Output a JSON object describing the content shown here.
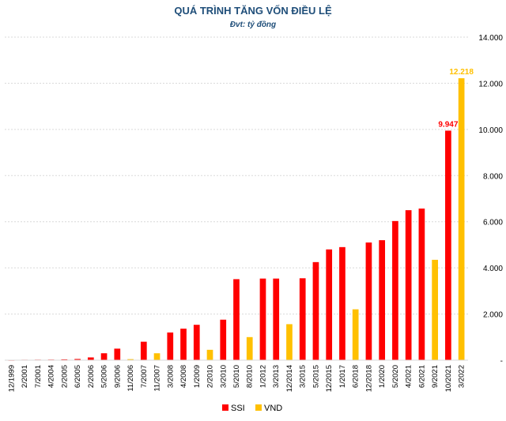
{
  "chart_data": {
    "type": "bar",
    "title": "QUÁ TRÌNH TĂNG VỐN ĐIỀU LỆ",
    "subtitle": "Đvt: tỷ đồng",
    "categories": [
      "12/1999",
      "2/2001",
      "7/2001",
      "4/2004",
      "2/2005",
      "6/2005",
      "2/2006",
      "5/2006",
      "9/2006",
      "11/2006",
      "7/2007",
      "11/2007",
      "3/2008",
      "4/2008",
      "1/2009",
      "2/2010",
      "3/2010",
      "5/2010",
      "8/2010",
      "1/2012",
      "3/2013",
      "12/2014",
      "3/2015",
      "5/2015",
      "12/2015",
      "1/2017",
      "6/2018",
      "12/2018",
      "1/2020",
      "5/2020",
      "4/2021",
      "6/2021",
      "9/2021",
      "10/2021",
      "3/2022"
    ],
    "bars": [
      {
        "category": "12/1999",
        "series": "SSI",
        "value": 6
      },
      {
        "category": "2/2001",
        "series": "SSI",
        "value": 20
      },
      {
        "category": "7/2001",
        "series": "SSI",
        "value": 23
      },
      {
        "category": "4/2004",
        "series": "SSI",
        "value": 26
      },
      {
        "category": "2/2005",
        "series": "SSI",
        "value": 36
      },
      {
        "category": "6/2005",
        "series": "SSI",
        "value": 52
      },
      {
        "category": "2/2006",
        "series": "SSI",
        "value": 120
      },
      {
        "category": "5/2006",
        "series": "SSI",
        "value": 300
      },
      {
        "category": "9/2006",
        "series": "SSI",
        "value": 500
      },
      {
        "category": "11/2006",
        "series": "VND",
        "value": 45
      },
      {
        "category": "7/2007",
        "series": "SSI",
        "value": 800
      },
      {
        "category": "11/2007",
        "series": "VND",
        "value": 300
      },
      {
        "category": "3/2008",
        "series": "SSI",
        "value": 1200
      },
      {
        "category": "4/2008",
        "series": "SSI",
        "value": 1366
      },
      {
        "category": "1/2009",
        "series": "SSI",
        "value": 1533
      },
      {
        "category": "2/2010",
        "series": "VND",
        "value": 450
      },
      {
        "category": "3/2010",
        "series": "SSI",
        "value": 1755
      },
      {
        "category": "5/2010",
        "series": "SSI",
        "value": 3511
      },
      {
        "category": "8/2010",
        "series": "VND",
        "value": 1000
      },
      {
        "category": "1/2012",
        "series": "SSI",
        "value": 3537
      },
      {
        "category": "3/2013",
        "series": "SSI",
        "value": 3537
      },
      {
        "category": "12/2014",
        "series": "VND",
        "value": 1560
      },
      {
        "category": "3/2015",
        "series": "SSI",
        "value": 3550
      },
      {
        "category": "5/2015",
        "series": "SSI",
        "value": 4250
      },
      {
        "category": "12/2015",
        "series": "SSI",
        "value": 4800
      },
      {
        "category": "1/2017",
        "series": "SSI",
        "value": 4900
      },
      {
        "category": "6/2018",
        "series": "VND",
        "value": 2204
      },
      {
        "category": "12/2018",
        "series": "SSI",
        "value": 5100
      },
      {
        "category": "1/2020",
        "series": "SSI",
        "value": 5200
      },
      {
        "category": "5/2020",
        "series": "SSI",
        "value": 6030
      },
      {
        "category": "4/2021",
        "series": "SSI",
        "value": 6500
      },
      {
        "category": "6/2021",
        "series": "SSI",
        "value": 6570
      },
      {
        "category": "9/2021",
        "series": "VND",
        "value": 4350
      },
      {
        "category": "10/2021",
        "series": "SSI",
        "value": 9947,
        "label": "9.947"
      },
      {
        "category": "3/2022",
        "series": "VND",
        "value": 12218,
        "label": "12.218"
      }
    ],
    "series": [
      {
        "name": "SSI",
        "color": "#ff0000"
      },
      {
        "name": "VND",
        "color": "#ffc000"
      }
    ],
    "ylim": [
      0,
      14000
    ],
    "yticks": [
      0,
      2000,
      4000,
      6000,
      8000,
      10000,
      12000,
      14000
    ],
    "ytick_labels": [
      "-",
      "2.000",
      "4.000",
      "6.000",
      "8.000",
      "10.000",
      "12.000",
      "14.000"
    ],
    "yaxis_position": "right",
    "grid": true,
    "legend_position": "bottom"
  }
}
